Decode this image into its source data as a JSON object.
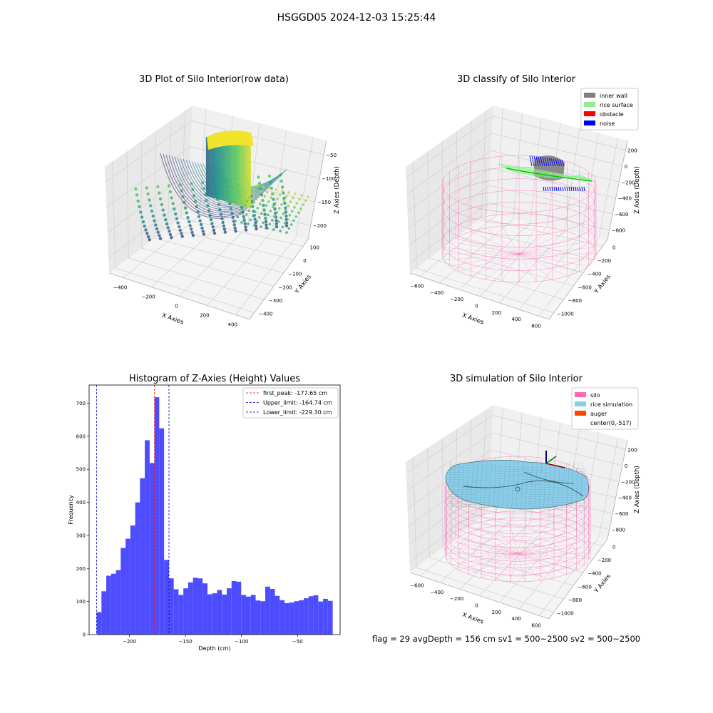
{
  "figure": {
    "suptitle": "HSGGD05 2024-12-03 15:25:44",
    "status_line": "flag = 29  avgDepth = 156 cm  sv1 = 500~2500  sv2 = 500~2500"
  },
  "colors": {
    "histogram_bar": "#4d4dff",
    "first_peak_line": "#ff0000",
    "limit_line": "#0000cc",
    "silo_mesh": "#ff69b4",
    "rice_surface": "#90ee90",
    "rice_simulation": "#87ceeb",
    "inner_wall": "#808080",
    "obstacle": "#ff0000",
    "noise": "#0000ff",
    "auger": "#ff4500"
  },
  "chart_data": [
    {
      "type": "scatter3d",
      "title": "3D Plot of Silo Interior(row data)",
      "xlabel": "X Axies",
      "ylabel": "Y Axies",
      "zlabel": "Z Axies (Depth)",
      "x_ticks": [
        "−400",
        "−200",
        "0",
        "200",
        "400"
      ],
      "y_ticks": [
        "100",
        "0",
        "−100",
        "−200",
        "−300",
        "−400"
      ],
      "z_ticks": [
        "−50",
        "−100",
        "−150",
        "−200"
      ],
      "colormap": "viridis"
    },
    {
      "type": "scatter3d",
      "title": "3D classify of Silo Interior",
      "xlabel": "X Axies",
      "ylabel": "Y Axies",
      "zlabel": "Z Axies (Depth)",
      "x_ticks": [
        "−600",
        "−400",
        "−200",
        "0",
        "200",
        "400",
        "600"
      ],
      "y_ticks": [
        "0",
        "−200",
        "−400",
        "−600",
        "−800",
        "−1000"
      ],
      "z_ticks": [
        "200",
        "0",
        "−200",
        "−400",
        "−600",
        "−800"
      ],
      "legend_position": "top-right",
      "legend": [
        {
          "label": "inner wall",
          "color": "#808080"
        },
        {
          "label": "rice surface",
          "color": "#90ee90"
        },
        {
          "label": "obstacle",
          "color": "#ff0000"
        },
        {
          "label": "noise",
          "color": "#0000ff"
        }
      ]
    },
    {
      "type": "bar",
      "title": "Histogram of Z-Axies (Height) Values",
      "xlabel": "Depth (cm)",
      "ylabel": "Frequency",
      "xlim": [
        -236,
        -12
      ],
      "ylim": [
        0,
        755
      ],
      "x_ticks": [
        -200,
        -150,
        -100,
        -50
      ],
      "x_tick_labels": [
        "−200",
        "−150",
        "−100",
        "−50"
      ],
      "y_ticks": [
        0,
        100,
        200,
        300,
        400,
        500,
        600,
        700
      ],
      "bin_start": -229.3,
      "bin_width": 4.3,
      "values": [
        68,
        131,
        178,
        184,
        195,
        262,
        290,
        330,
        400,
        473,
        588,
        519,
        718,
        624,
        226,
        170,
        137,
        120,
        140,
        158,
        172,
        170,
        155,
        122,
        125,
        135,
        121,
        140,
        162,
        160,
        120,
        115,
        120,
        103,
        101,
        145,
        138,
        117,
        104,
        95,
        97,
        101,
        104,
        110,
        116,
        119,
        100,
        108,
        102
      ],
      "lines": [
        {
          "label": "first_peak: -177.65 cm",
          "x": -177.65,
          "color": "#ff0000"
        },
        {
          "label": "Upper_limit: -164.74 cm",
          "x": -164.74,
          "color": "#0000cc"
        },
        {
          "label": "Lower_limit: -229.30 cm",
          "x": -229.3,
          "color": "#0000cc"
        }
      ],
      "legend_position": "top-right"
    },
    {
      "type": "surface3d",
      "title": "3D simulation of Silo Interior",
      "xlabel": "X Axies",
      "ylabel": "Y Axies",
      "zlabel": "Z Axies (Depth)",
      "x_ticks": [
        "−600",
        "−400",
        "−200",
        "0",
        "200",
        "400",
        "600"
      ],
      "y_ticks": [
        "0",
        "−200",
        "−400",
        "−600",
        "−800",
        "−1000"
      ],
      "z_ticks": [
        "200",
        "0",
        "−200",
        "−400",
        "−600",
        "−800"
      ],
      "legend_position": "top-right",
      "legend": [
        {
          "label": "silo",
          "color": "#ff69b4"
        },
        {
          "label": "rice simulation",
          "color": "#87ceeb"
        },
        {
          "label": "auger",
          "color": "#ff4500"
        },
        {
          "label": "center(0,-517)",
          "color": ""
        }
      ]
    }
  ]
}
